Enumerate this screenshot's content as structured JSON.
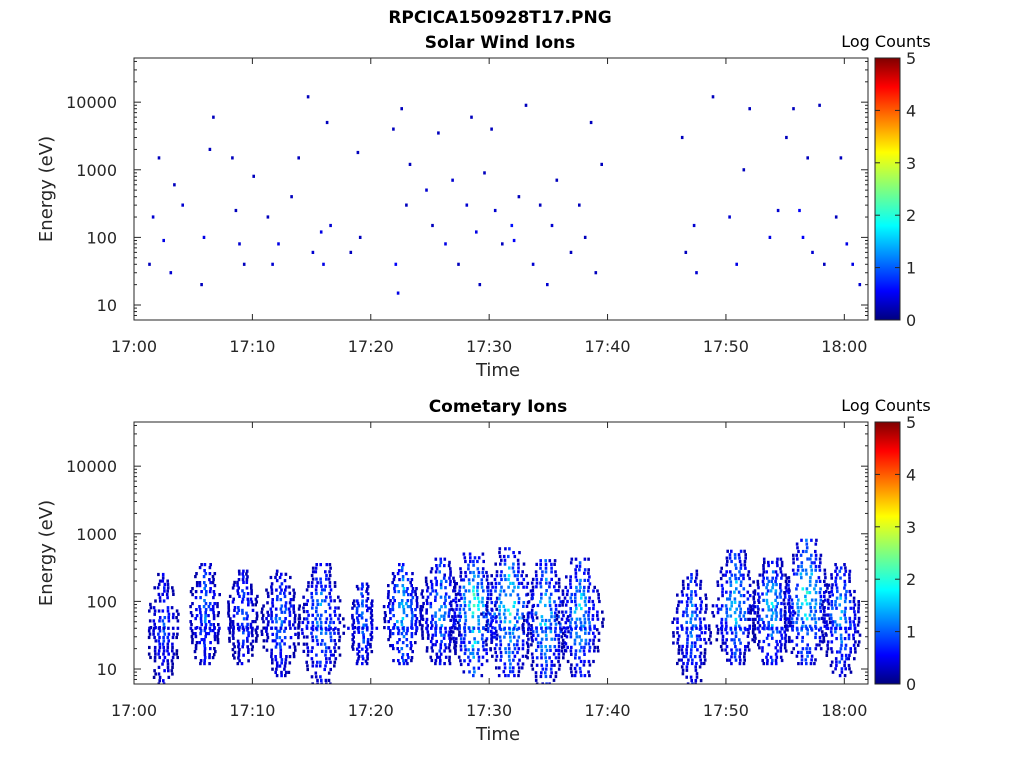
{
  "figure": {
    "title": "RPCICA150928T17.PNG"
  },
  "panels": [
    {
      "title": "Solar Wind Ions",
      "xlabel": "Time",
      "ylabel": "Energy (eV)",
      "colorbar_label": "Log Counts",
      "x_ticks": [
        "17:00",
        "17:10",
        "17:20",
        "17:30",
        "17:40",
        "17:50",
        "18:00"
      ],
      "y_ticks": [
        "10",
        "100",
        "1000",
        "10000"
      ],
      "colorbar_ticks": [
        "0",
        "1",
        "2",
        "3",
        "4",
        "5"
      ]
    },
    {
      "title": "Cometary Ions",
      "xlabel": "Time",
      "ylabel": "Energy (eV)",
      "colorbar_label": "Log Counts",
      "x_ticks": [
        "17:00",
        "17:10",
        "17:20",
        "17:30",
        "17:40",
        "17:50",
        "18:00"
      ],
      "y_ticks": [
        "10",
        "100",
        "1000",
        "10000"
      ],
      "colorbar_ticks": [
        "0",
        "1",
        "2",
        "3",
        "4",
        "5"
      ]
    }
  ],
  "chart_data": [
    {
      "type": "heatmap",
      "title": "Solar Wind Ions",
      "xlabel": "Time",
      "ylabel": "Energy (eV)",
      "x_range_minutes_after_1700": [
        0,
        62
      ],
      "y_range_eV": [
        6,
        45000
      ],
      "y_scale": "log",
      "color_scale": "jet",
      "color_range": [
        0,
        5
      ],
      "colorbar_label": "Log Counts",
      "grid": false,
      "points": [
        [
          1.2,
          40,
          0.3
        ],
        [
          1.5,
          200,
          0.4
        ],
        [
          2.0,
          1500,
          0.3
        ],
        [
          2.4,
          90,
          0.5
        ],
        [
          3.0,
          30,
          0.4
        ],
        [
          3.3,
          600,
          0.3
        ],
        [
          4.0,
          300,
          0.4
        ],
        [
          5.6,
          20,
          0.3
        ],
        [
          5.8,
          100,
          0.5
        ],
        [
          6.3,
          2000,
          0.3
        ],
        [
          6.6,
          6000,
          0.3
        ],
        [
          8.2,
          1500,
          0.3
        ],
        [
          8.5,
          250,
          0.3
        ],
        [
          8.8,
          80,
          0.4
        ],
        [
          9.2,
          40,
          0.3
        ],
        [
          10.0,
          800,
          0.3
        ],
        [
          11.2,
          200,
          0.3
        ],
        [
          11.6,
          40,
          0.4
        ],
        [
          12.1,
          80,
          0.5
        ],
        [
          13.2,
          400,
          0.3
        ],
        [
          13.8,
          1500,
          0.3
        ],
        [
          14.6,
          12000,
          0.3
        ],
        [
          15.0,
          60,
          0.4
        ],
        [
          15.7,
          120,
          0.5
        ],
        [
          15.9,
          40,
          0.5
        ],
        [
          16.2,
          5000,
          0.3
        ],
        [
          16.5,
          150,
          0.4
        ],
        [
          18.2,
          60,
          0.3
        ],
        [
          18.8,
          1800,
          0.3
        ],
        [
          19.0,
          100,
          0.3
        ],
        [
          21.8,
          4000,
          0.3
        ],
        [
          22.0,
          40,
          0.6
        ],
        [
          22.2,
          15,
          0.5
        ],
        [
          22.5,
          8000,
          0.3
        ],
        [
          22.9,
          300,
          0.3
        ],
        [
          23.2,
          1200,
          0.3
        ],
        [
          24.6,
          500,
          0.4
        ],
        [
          25.1,
          150,
          0.3
        ],
        [
          25.6,
          3500,
          0.3
        ],
        [
          26.2,
          80,
          0.5
        ],
        [
          26.8,
          700,
          0.4
        ],
        [
          27.3,
          40,
          0.3
        ],
        [
          28.0,
          300,
          0.4
        ],
        [
          28.4,
          6000,
          0.3
        ],
        [
          28.8,
          120,
          0.5
        ],
        [
          29.1,
          20,
          0.3
        ],
        [
          29.5,
          900,
          0.3
        ],
        [
          30.1,
          4000,
          0.3
        ],
        [
          30.4,
          250,
          0.4
        ],
        [
          31.0,
          80,
          0.3
        ],
        [
          31.8,
          150,
          0.7
        ],
        [
          32.0,
          90,
          0.6
        ],
        [
          32.4,
          400,
          0.3
        ],
        [
          33.0,
          9000,
          0.3
        ],
        [
          33.6,
          40,
          0.4
        ],
        [
          34.2,
          300,
          0.3
        ],
        [
          34.8,
          20,
          0.4
        ],
        [
          35.2,
          150,
          0.4
        ],
        [
          35.6,
          700,
          0.3
        ],
        [
          36.8,
          60,
          0.3
        ],
        [
          37.5,
          300,
          0.3
        ],
        [
          38.0,
          100,
          0.3
        ],
        [
          38.5,
          5000,
          0.3
        ],
        [
          38.9,
          30,
          0.3
        ],
        [
          39.4,
          1200,
          0.3
        ],
        [
          46.2,
          3000,
          0.3
        ],
        [
          46.5,
          60,
          0.3
        ],
        [
          47.2,
          150,
          0.4
        ],
        [
          47.4,
          30,
          0.4
        ],
        [
          48.8,
          12000,
          0.3
        ],
        [
          50.2,
          200,
          0.4
        ],
        [
          50.8,
          40,
          0.5
        ],
        [
          51.4,
          1000,
          0.3
        ],
        [
          51.9,
          8000,
          0.3
        ],
        [
          53.6,
          100,
          0.5
        ],
        [
          54.3,
          250,
          0.4
        ],
        [
          55.0,
          3000,
          0.3
        ],
        [
          55.6,
          8000,
          0.3
        ],
        [
          56.1,
          250,
          0.6
        ],
        [
          56.4,
          100,
          0.6
        ],
        [
          56.8,
          1500,
          0.3
        ],
        [
          57.2,
          60,
          0.4
        ],
        [
          57.8,
          9000,
          0.3
        ],
        [
          58.2,
          40,
          0.3
        ],
        [
          59.2,
          200,
          0.3
        ],
        [
          59.6,
          1500,
          0.3
        ],
        [
          60.1,
          80,
          0.5
        ],
        [
          60.6,
          40,
          0.5
        ],
        [
          61.2,
          20,
          0.4
        ]
      ]
    },
    {
      "type": "heatmap",
      "title": "Cometary Ions",
      "xlabel": "Time",
      "ylabel": "Energy (eV)",
      "x_range_minutes_after_1700": [
        0,
        62
      ],
      "y_range_eV": [
        6,
        45000
      ],
      "y_scale": "log",
      "color_scale": "jet",
      "color_range": [
        0,
        5
      ],
      "colorbar_label": "Log Counts",
      "grid": false,
      "bursts": [
        {
          "t": 2.4,
          "e_min": 6,
          "e_max": 250,
          "peak": 0.9,
          "width": 1.4
        },
        {
          "t": 5.9,
          "e_min": 12,
          "e_max": 350,
          "peak": 1.1,
          "width": 1.5
        },
        {
          "t": 9.1,
          "e_min": 12,
          "e_max": 280,
          "peak": 1.0,
          "width": 1.4
        },
        {
          "t": 12.3,
          "e_min": 8,
          "e_max": 280,
          "peak": 1.1,
          "width": 1.8
        },
        {
          "t": 15.7,
          "e_min": 6,
          "e_max": 350,
          "peak": 1.3,
          "width": 2.0
        },
        {
          "t": 19.2,
          "e_min": 12,
          "e_max": 180,
          "peak": 1.2,
          "width": 1.0
        },
        {
          "t": 22.6,
          "e_min": 12,
          "e_max": 350,
          "peak": 1.6,
          "width": 1.6
        },
        {
          "t": 25.8,
          "e_min": 12,
          "e_max": 420,
          "peak": 1.3,
          "width": 1.9
        },
        {
          "t": 28.6,
          "e_min": 8,
          "e_max": 500,
          "peak": 1.9,
          "width": 2.2
        },
        {
          "t": 31.6,
          "e_min": 8,
          "e_max": 600,
          "peak": 1.8,
          "width": 2.4
        },
        {
          "t": 34.7,
          "e_min": 6,
          "e_max": 400,
          "peak": 1.6,
          "width": 2.0
        },
        {
          "t": 37.6,
          "e_min": 8,
          "e_max": 420,
          "peak": 1.5,
          "width": 2.0
        },
        {
          "t": 47.0,
          "e_min": 6,
          "e_max": 280,
          "peak": 1.2,
          "width": 1.6
        },
        {
          "t": 50.7,
          "e_min": 12,
          "e_max": 550,
          "peak": 1.5,
          "width": 2.0
        },
        {
          "t": 53.8,
          "e_min": 12,
          "e_max": 420,
          "peak": 1.5,
          "width": 2.0
        },
        {
          "t": 56.7,
          "e_min": 12,
          "e_max": 800,
          "peak": 1.8,
          "width": 2.2
        },
        {
          "t": 59.6,
          "e_min": 8,
          "e_max": 350,
          "peak": 1.4,
          "width": 1.8
        }
      ]
    }
  ]
}
